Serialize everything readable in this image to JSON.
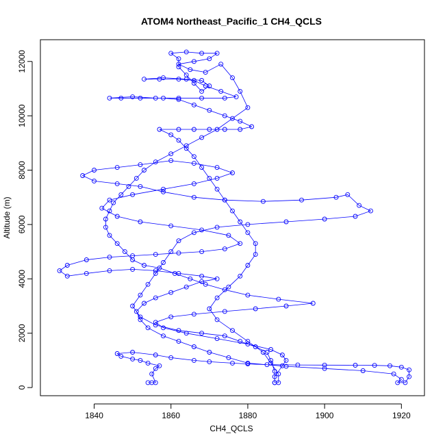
{
  "chart_data": {
    "type": "scatter",
    "title": "ATOM4 Northeast_Pacific_1 CH4_QCLS",
    "xlabel": "CH4_QCLS",
    "ylabel": "Altitude (m)",
    "xlim": [
      1826,
      1926
    ],
    "ylim": [
      -300,
      12800
    ],
    "xticks": [
      1840,
      1860,
      1880,
      1900,
      1920
    ],
    "xtick_labels": [
      "1840",
      "1860",
      "1880",
      "1900",
      "1920"
    ],
    "yticks": [
      0,
      2000,
      4000,
      6000,
      8000,
      10000,
      12000
    ],
    "ytick_labels": [
      "0",
      "2000",
      "4000",
      "6000",
      "8000",
      "10000",
      "12000"
    ],
    "grid": false,
    "legend": "none",
    "marker": "open-circle",
    "connect_points": true,
    "color": "#0000ff",
    "series": [
      {
        "points": [
          [
            1854,
            180
          ],
          [
            1855,
            180
          ],
          [
            1856,
            180
          ],
          [
            1855,
            500
          ],
          [
            1856,
            700
          ],
          [
            1857,
            800
          ],
          [
            1854,
            900
          ],
          [
            1852,
            1000
          ],
          [
            1850,
            1050
          ],
          [
            1847,
            1150
          ],
          [
            1846,
            1250
          ],
          [
            1850,
            1300
          ],
          [
            1856,
            1200
          ],
          [
            1860,
            1100
          ],
          [
            1866,
            1000
          ],
          [
            1870,
            950
          ],
          [
            1876,
            900
          ],
          [
            1880,
            870
          ],
          [
            1885,
            840
          ],
          [
            1893,
            830
          ],
          [
            1900,
            825
          ],
          [
            1908,
            820
          ],
          [
            1913,
            815
          ],
          [
            1917,
            800
          ],
          [
            1920,
            750
          ],
          [
            1922,
            650
          ],
          [
            1922,
            400
          ],
          [
            1921,
            180
          ],
          [
            1919,
            180
          ],
          [
            1920,
            300
          ],
          [
            1918,
            500
          ],
          [
            1910,
            620
          ],
          [
            1900,
            700
          ],
          [
            1890,
            780
          ],
          [
            1880,
            900
          ],
          [
            1875,
            1100
          ],
          [
            1870,
            1300
          ],
          [
            1866,
            1500
          ],
          [
            1862,
            1700
          ],
          [
            1858,
            1900
          ],
          [
            1854,
            2200
          ],
          [
            1852,
            2500
          ],
          [
            1851,
            2800
          ],
          [
            1853,
            3100
          ],
          [
            1856,
            3300
          ],
          [
            1860,
            3500
          ],
          [
            1864,
            3700
          ],
          [
            1868,
            3900
          ],
          [
            1872,
            4000
          ],
          [
            1868,
            4100
          ],
          [
            1862,
            4200
          ],
          [
            1856,
            4300
          ],
          [
            1850,
            4350
          ],
          [
            1844,
            4300
          ],
          [
            1838,
            4200
          ],
          [
            1833,
            4100
          ],
          [
            1831,
            4300
          ],
          [
            1833,
            4500
          ],
          [
            1838,
            4700
          ],
          [
            1844,
            4800
          ],
          [
            1850,
            4850
          ],
          [
            1856,
            4900
          ],
          [
            1862,
            4950
          ],
          [
            1868,
            5000
          ],
          [
            1874,
            5100
          ],
          [
            1878,
            5300
          ],
          [
            1875,
            5600
          ],
          [
            1868,
            5800
          ],
          [
            1860,
            5950
          ],
          [
            1852,
            6100
          ],
          [
            1846,
            6300
          ],
          [
            1842,
            6600
          ],
          [
            1844,
            6900
          ],
          [
            1850,
            7100
          ],
          [
            1858,
            7300
          ],
          [
            1866,
            7500
          ],
          [
            1872,
            7700
          ],
          [
            1876,
            7900
          ],
          [
            1872,
            8100
          ],
          [
            1866,
            8250
          ],
          [
            1860,
            8350
          ],
          [
            1852,
            8200
          ],
          [
            1846,
            8100
          ],
          [
            1840,
            8000
          ],
          [
            1837,
            7800
          ],
          [
            1840,
            7600
          ],
          [
            1846,
            7500
          ],
          [
            1852,
            7400
          ],
          [
            1858,
            7200
          ],
          [
            1866,
            7000
          ],
          [
            1874,
            6900
          ],
          [
            1884,
            6850
          ],
          [
            1894,
            6900
          ],
          [
            1903,
            7000
          ],
          [
            1906,
            7100
          ],
          [
            1909,
            6700
          ],
          [
            1912,
            6500
          ],
          [
            1908,
            6300
          ],
          [
            1900,
            6200
          ],
          [
            1890,
            6100
          ],
          [
            1880,
            6000
          ],
          [
            1872,
            5900
          ],
          [
            1866,
            5700
          ],
          [
            1862,
            5400
          ],
          [
            1860,
            5000
          ],
          [
            1858,
            4600
          ],
          [
            1856,
            4200
          ],
          [
            1854,
            3800
          ],
          [
            1852,
            3400
          ],
          [
            1850,
            3000
          ],
          [
            1852,
            2600
          ],
          [
            1856,
            2300
          ],
          [
            1862,
            2100
          ],
          [
            1868,
            2000
          ],
          [
            1874,
            1900
          ],
          [
            1878,
            1700
          ],
          [
            1882,
            1500
          ],
          [
            1885,
            1300
          ],
          [
            1886,
            1000
          ],
          [
            1887,
            600
          ],
          [
            1887,
            180
          ],
          [
            1888,
            180
          ],
          [
            1888,
            500
          ],
          [
            1886,
            900
          ],
          [
            1884,
            1300
          ],
          [
            1880,
            1700
          ],
          [
            1876,
            2100
          ],
          [
            1872,
            2500
          ],
          [
            1870,
            2900
          ],
          [
            1872,
            3300
          ],
          [
            1875,
            3700
          ],
          [
            1878,
            4100
          ],
          [
            1880,
            4500
          ],
          [
            1882,
            4900
          ],
          [
            1882,
            5300
          ],
          [
            1880,
            5700
          ],
          [
            1878,
            6100
          ],
          [
            1876,
            6500
          ],
          [
            1874,
            6900
          ],
          [
            1872,
            7300
          ],
          [
            1870,
            7700
          ],
          [
            1868,
            8100
          ],
          [
            1866,
            8500
          ],
          [
            1864,
            8800
          ],
          [
            1862,
            9100
          ],
          [
            1860,
            9300
          ],
          [
            1857,
            9500
          ],
          [
            1862,
            9500
          ],
          [
            1866,
            9500
          ],
          [
            1870,
            9500
          ],
          [
            1874,
            9500
          ],
          [
            1878,
            9500
          ],
          [
            1881,
            9600
          ],
          [
            1878,
            9800
          ],
          [
            1874,
            10000
          ],
          [
            1870,
            10200
          ],
          [
            1866,
            10400
          ],
          [
            1862,
            10600
          ],
          [
            1858,
            10650
          ],
          [
            1852,
            10650
          ],
          [
            1847,
            10650
          ],
          [
            1844,
            10650
          ],
          [
            1850,
            10700
          ],
          [
            1856,
            10650
          ],
          [
            1862,
            10650
          ],
          [
            1868,
            10650
          ],
          [
            1874,
            10650
          ],
          [
            1877,
            10700
          ],
          [
            1873,
            10900
          ],
          [
            1869,
            11100
          ],
          [
            1866,
            11300
          ],
          [
            1862,
            11350
          ],
          [
            1857,
            11350
          ],
          [
            1853,
            11350
          ],
          [
            1858,
            11400
          ],
          [
            1864,
            11350
          ],
          [
            1868,
            11300
          ],
          [
            1870,
            11100
          ],
          [
            1868,
            10900
          ],
          [
            1866,
            11200
          ],
          [
            1864,
            11500
          ],
          [
            1862,
            11800
          ],
          [
            1862,
            12100
          ],
          [
            1860,
            12300
          ],
          [
            1864,
            12350
          ],
          [
            1868,
            12300
          ],
          [
            1872,
            12300
          ],
          [
            1870,
            12100
          ],
          [
            1866,
            12000
          ],
          [
            1862,
            11900
          ],
          [
            1865,
            11700
          ],
          [
            1869,
            11600
          ],
          [
            1873,
            11900
          ],
          [
            1876,
            11400
          ],
          [
            1878,
            10900
          ],
          [
            1880,
            10300
          ],
          [
            1876,
            9900
          ],
          [
            1872,
            9500
          ],
          [
            1868,
            9200
          ],
          [
            1864,
            8900
          ],
          [
            1860,
            8600
          ],
          [
            1856,
            8300
          ],
          [
            1853,
            8000
          ],
          [
            1851,
            7700
          ],
          [
            1849,
            7400
          ],
          [
            1847,
            7100
          ],
          [
            1845,
            6800
          ],
          [
            1844,
            6500
          ],
          [
            1843,
            6200
          ],
          [
            1843,
            5900
          ],
          [
            1844,
            5600
          ],
          [
            1846,
            5300
          ],
          [
            1848,
            5000
          ],
          [
            1850,
            4700
          ],
          [
            1853,
            4500
          ],
          [
            1857,
            4400
          ],
          [
            1861,
            4200
          ],
          [
            1865,
            4000
          ],
          [
            1869,
            3800
          ],
          [
            1874,
            3600
          ],
          [
            1880,
            3400
          ],
          [
            1888,
            3250
          ],
          [
            1897,
            3100
          ],
          [
            1890,
            3000
          ],
          [
            1882,
            2900
          ],
          [
            1874,
            2800
          ],
          [
            1866,
            2700
          ],
          [
            1860,
            2600
          ],
          [
            1856,
            2400
          ],
          [
            1858,
            2200
          ],
          [
            1864,
            2000
          ],
          [
            1872,
            1800
          ],
          [
            1880,
            1600
          ],
          [
            1886,
            1400
          ],
          [
            1889,
            1200
          ],
          [
            1890,
            1000
          ],
          [
            1889,
            800
          ],
          [
            1887,
            400
          ],
          [
            1887,
            180
          ]
        ]
      }
    ]
  }
}
